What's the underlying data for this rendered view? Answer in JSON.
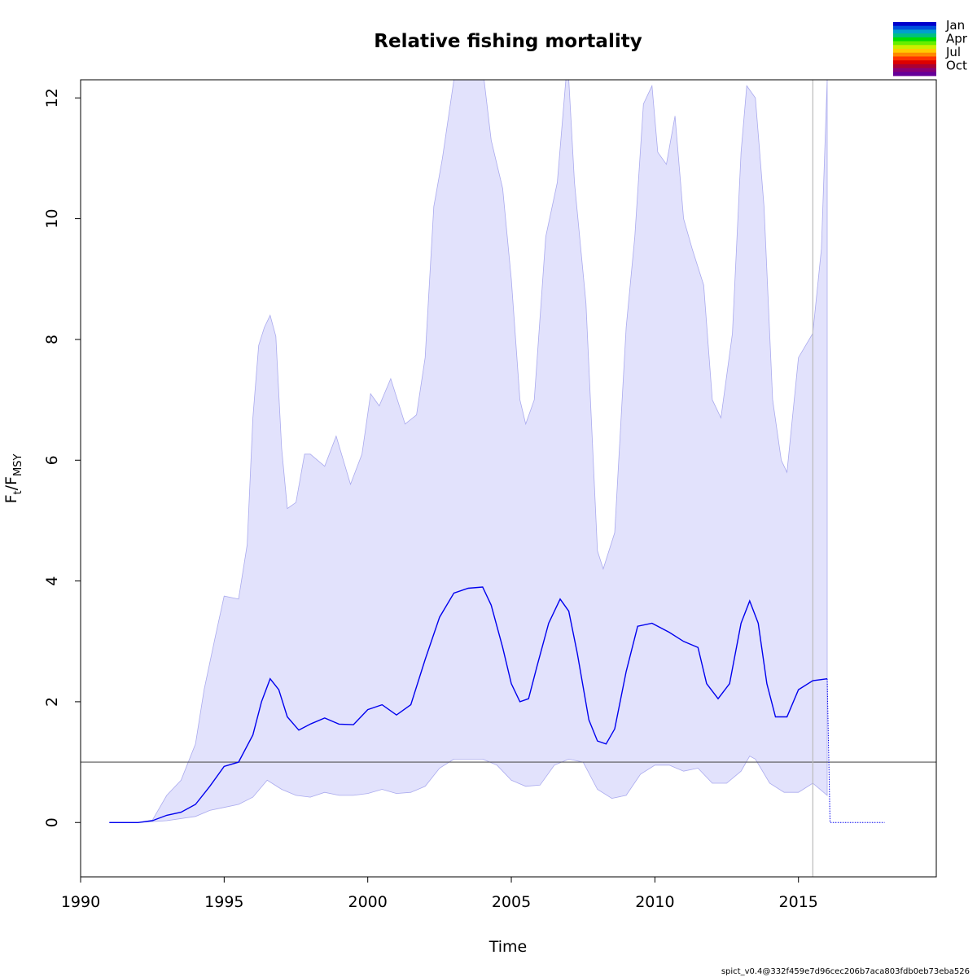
{
  "chart_data": {
    "type": "line",
    "title": "Relative fishing mortality",
    "xlabel": "Time",
    "ylabel": {
      "F": "F",
      "t": "t",
      "sep": "/",
      "msy_F": "F",
      "msy": "MSY"
    },
    "xlim": [
      1990,
      2019.8
    ],
    "ylim": [
      -0.9,
      12.3
    ],
    "x_ticks": [
      1990,
      1995,
      2000,
      2005,
      2010,
      2015
    ],
    "y_ticks": [
      0,
      2,
      4,
      6,
      8,
      10,
      12
    ],
    "reference_line": 1,
    "vline": 2015.5,
    "grid": false,
    "colors": {
      "estimate": "#0000ee",
      "ci_fill": "#e2e2fc",
      "ci_border": "#aaaaee",
      "reference": "#555555",
      "vline": "#bbbbbb"
    },
    "series": [
      {
        "x": [
          1991.0,
          1992.0,
          1992.5,
          1993.0,
          1993.5,
          1994.0,
          1994.5,
          1995.0,
          1995.5,
          1996.0,
          1996.3,
          1996.6,
          1996.9,
          1997.2,
          1997.6,
          1998.0,
          1998.5,
          1999.0,
          1999.5,
          2000.0,
          2000.5,
          2001.0,
          2001.5,
          2002.0,
          2002.5,
          2003.0,
          2003.5,
          2004.0,
          2004.3,
          2004.7,
          2005.0,
          2005.3,
          2005.6,
          2005.9,
          2006.3,
          2006.7,
          2007.0,
          2007.3,
          2007.7,
          2008.0,
          2008.3,
          2008.6,
          2009.0,
          2009.4,
          2009.9,
          2010.5,
          2011.0,
          2011.5,
          2011.8,
          2012.2,
          2012.6,
          2013.0,
          2013.3,
          2013.6,
          2013.9,
          2014.2,
          2014.6,
          2015.0,
          2015.5,
          2016.0
        ],
        "y": [
          0,
          0,
          0.03,
          0.12,
          0.17,
          0.3,
          0.6,
          0.93,
          1.0,
          1.45,
          2.0,
          2.38,
          2.2,
          1.75,
          1.53,
          1.63,
          1.73,
          1.63,
          1.62,
          1.87,
          1.95,
          1.78,
          1.95,
          2.7,
          3.4,
          3.8,
          3.88,
          3.9,
          3.6,
          2.9,
          2.3,
          2.0,
          2.05,
          2.6,
          3.3,
          3.7,
          3.5,
          2.8,
          1.7,
          1.35,
          1.3,
          1.55,
          2.5,
          3.25,
          3.3,
          3.15,
          3.0,
          2.9,
          2.3,
          2.05,
          2.3,
          3.3,
          3.67,
          3.3,
          2.3,
          1.75,
          1.75,
          2.2,
          2.35,
          2.38
        ],
        "name": ""
      },
      {
        "x": [
          2016.0,
          2016.1,
          2018.0
        ],
        "y": [
          2.38,
          0,
          0
        ],
        "name": "",
        "style": "dotted"
      }
    ],
    "ci_upper": {
      "x": [
        1991.0,
        1992.0,
        1992.5,
        1993.0,
        1993.5,
        1994.0,
        1994.3,
        1994.7,
        1995.0,
        1995.5,
        1995.8,
        1996.0,
        1996.2,
        1996.4,
        1996.6,
        1996.8,
        1997.0,
        1997.2,
        1997.5,
        1997.8,
        1998.0,
        1998.5,
        1998.9,
        1999.4,
        1999.8,
        2000.1,
        2000.4,
        2000.8,
        2001.3,
        2001.7,
        2002.0,
        2002.3,
        2002.6,
        2003.0,
        2003.3,
        2004.0,
        2004.3,
        2004.7,
        2005.0,
        2005.3,
        2005.5,
        2005.8,
        2006.2,
        2006.6,
        2006.9,
        2007.0,
        2007.2,
        2007.6,
        2008.0,
        2008.2,
        2008.6,
        2009.0,
        2009.3,
        2009.6,
        2009.9,
        2010.1,
        2010.4,
        2010.7,
        2011.0,
        2011.3,
        2011.7,
        2012.0,
        2012.3,
        2012.7,
        2013.0,
        2013.2,
        2013.5,
        2013.8,
        2014.1,
        2014.4,
        2014.6,
        2015.0,
        2015.5,
        2015.8,
        2016.0
      ],
      "y": [
        0,
        0,
        0.04,
        0.45,
        0.7,
        1.3,
        2.2,
        3.1,
        3.75,
        3.7,
        4.6,
        6.7,
        7.9,
        8.2,
        8.4,
        8.05,
        6.2,
        5.2,
        5.3,
        6.1,
        6.1,
        5.9,
        6.4,
        5.6,
        6.1,
        7.1,
        6.9,
        7.35,
        6.6,
        6.75,
        7.7,
        10.2,
        11.0,
        12.3,
        12.5,
        12.5,
        11.3,
        10.5,
        9.0,
        7.0,
        6.6,
        7.0,
        9.7,
        10.6,
        12.3,
        12.3,
        10.6,
        8.6,
        4.5,
        4.2,
        4.8,
        8.2,
        9.7,
        11.9,
        12.2,
        11.1,
        10.9,
        11.7,
        10.0,
        9.5,
        8.9,
        7.0,
        6.7,
        8.1,
        11.1,
        12.2,
        12.0,
        10.2,
        7.0,
        6.0,
        5.8,
        7.7,
        8.1,
        9.5,
        12.3
      ]
    },
    "ci_lower": {
      "x": [
        1991.0,
        1992.0,
        1993.0,
        1994.0,
        1994.5,
        1995.0,
        1995.5,
        1996.0,
        1996.5,
        1997.0,
        1997.5,
        1998.0,
        1998.5,
        1999.0,
        1999.5,
        2000.0,
        2000.5,
        2001.0,
        2001.5,
        2002.0,
        2002.5,
        2003.0,
        2003.5,
        2004.0,
        2004.5,
        2005.0,
        2005.5,
        2006.0,
        2006.5,
        2007.0,
        2007.5,
        2008.0,
        2008.5,
        2009.0,
        2009.5,
        2010.0,
        2010.5,
        2011.0,
        2011.5,
        2012.0,
        2012.5,
        2013.0,
        2013.3,
        2013.5,
        2014.0,
        2014.5,
        2015.0,
        2015.5,
        2016.0
      ],
      "y": [
        0,
        0,
        0.03,
        0.1,
        0.2,
        0.25,
        0.3,
        0.42,
        0.7,
        0.55,
        0.45,
        0.42,
        0.5,
        0.45,
        0.45,
        0.48,
        0.55,
        0.48,
        0.5,
        0.6,
        0.9,
        1.05,
        1.05,
        1.05,
        0.95,
        0.7,
        0.6,
        0.62,
        0.95,
        1.05,
        1.0,
        0.55,
        0.4,
        0.45,
        0.8,
        0.95,
        0.95,
        0.85,
        0.9,
        0.65,
        0.65,
        0.85,
        1.1,
        1.05,
        0.65,
        0.5,
        0.5,
        0.65,
        0.45
      ]
    },
    "legend": {
      "labels": [
        "Jan",
        "Apr",
        "Jul",
        "Oct"
      ],
      "colors": [
        "#0000cc",
        "#0050dd",
        "#00a0cc",
        "#00c080",
        "#00dd00",
        "#66ee00",
        "#ccee00",
        "#ffcc00",
        "#ff8800",
        "#ff3300",
        "#dd0000",
        "#aa0033",
        "#880077",
        "#660099"
      ]
    },
    "footer": "spict_v0.4@332f459e7d96cec206b7aca803fdb0eb73eba526"
  }
}
